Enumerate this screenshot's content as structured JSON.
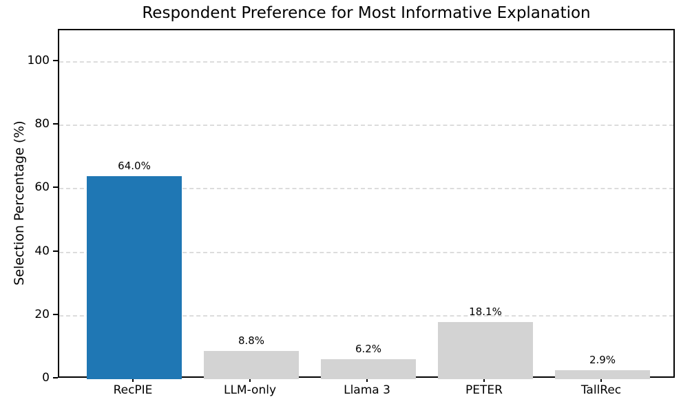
{
  "chart_data": {
    "type": "bar",
    "title": "Respondent Preference for Most Informative Explanation",
    "categories": [
      "RecPIE",
      "LLM-only",
      "Llama 3",
      "PETER",
      "TallRec"
    ],
    "values": [
      64.0,
      8.8,
      6.2,
      18.1,
      2.9
    ],
    "value_labels": [
      "64.0%",
      "8.8%",
      "6.2%",
      "18.1%",
      "2.9%"
    ],
    "xlabel": "",
    "ylabel": "Selection Percentage (%)",
    "ytick_labels": [
      "0",
      "20",
      "40",
      "60",
      "80",
      "100"
    ],
    "yticks": [
      0,
      20,
      40,
      60,
      80,
      100
    ],
    "ylim": [
      0,
      110
    ],
    "grid": "horizontal-dashed",
    "gridline_color": "#dcdcdc",
    "bar_colors": [
      "#1f77b4",
      "#d3d3d3",
      "#d3d3d3",
      "#d3d3d3",
      "#d3d3d3"
    ],
    "highlight_color": "#1f77b4",
    "default_bar_color": "#d3d3d3",
    "spine_color": "#000000",
    "legend": "none"
  }
}
